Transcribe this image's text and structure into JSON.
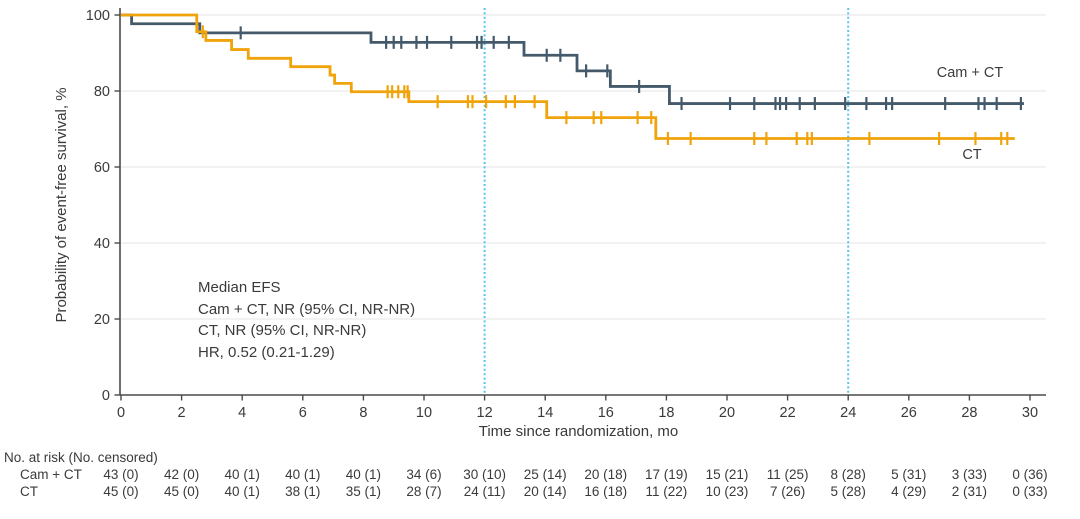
{
  "chart_data": {
    "type": "line",
    "subtype": "kaplan-meier-step",
    "title": "",
    "xlabel": "Time since randomization, mo",
    "ylabel": "Probability of event-free survival, %",
    "xlim": [
      0,
      30
    ],
    "ylim": [
      0,
      100
    ],
    "x_ticks": [
      0,
      2,
      4,
      6,
      8,
      10,
      12,
      14,
      16,
      18,
      20,
      22,
      24,
      26,
      28,
      30
    ],
    "y_ticks": [
      0,
      20,
      40,
      60,
      80,
      100
    ],
    "grid": "horizontal",
    "gridline_color": "#ebebeb",
    "axis_color": "#4a4a4a",
    "text_color": "#3a3a3a",
    "reference_lines_x": [
      12,
      24
    ],
    "reference_line_color": "#55C3EE",
    "legend_position": "curve-labels-right",
    "series": [
      {
        "name": "Cam + CT",
        "color": "#445A6B",
        "steps": [
          [
            0,
            100
          ],
          [
            0.35,
            97.7
          ],
          [
            2.6,
            95.3
          ],
          [
            8.25,
            92.8
          ],
          [
            13.3,
            89.4
          ],
          [
            15.05,
            85.3
          ],
          [
            16.15,
            81.2
          ],
          [
            18.1,
            76.7
          ],
          [
            29.8,
            76.7
          ]
        ],
        "censor_marks": [
          3.95,
          8.75,
          9.0,
          9.25,
          9.75,
          10.1,
          10.9,
          11.75,
          11.9,
          12.3,
          12.8,
          14.05,
          14.5,
          15.35,
          16.05,
          17.1,
          18.5,
          20.1,
          20.9,
          21.6,
          21.75,
          21.95,
          22.4,
          22.9,
          23.9,
          24.6,
          25.25,
          25.45,
          27.2,
          28.3,
          28.5,
          28.9,
          29.7
        ]
      },
      {
        "name": "CT",
        "color": "#F0A30A",
        "steps": [
          [
            0,
            100
          ],
          [
            2.5,
            95.6
          ],
          [
            2.8,
            93.3
          ],
          [
            3.65,
            90.9
          ],
          [
            4.2,
            88.6
          ],
          [
            5.6,
            86.4
          ],
          [
            6.9,
            84.2
          ],
          [
            7.05,
            82.0
          ],
          [
            7.6,
            79.8
          ],
          [
            9.5,
            77.2
          ],
          [
            14.05,
            73.0
          ],
          [
            17.65,
            67.5
          ],
          [
            29.5,
            67.5
          ]
        ],
        "censor_marks": [
          2.7,
          8.8,
          8.95,
          9.15,
          9.35,
          9.46,
          10.45,
          11.45,
          11.6,
          12.05,
          12.7,
          13.0,
          13.65,
          14.7,
          15.6,
          15.85,
          17.05,
          17.5,
          18.05,
          18.8,
          20.9,
          21.3,
          22.3,
          22.65,
          22.8,
          24.7,
          27.0,
          28.2,
          29.05,
          29.25
        ]
      }
    ],
    "annotation": {
      "lines": [
        "Median EFS",
        "Cam + CT, NR (95% CI, NR-NR)",
        "CT, NR (95% CI, NR-NR)",
        "HR, 0.52 (0.21-1.29)"
      ]
    },
    "risk_table": {
      "header": "No. at risk (No. censored)",
      "time_points": [
        0,
        2,
        4,
        6,
        8,
        10,
        12,
        14,
        16,
        18,
        20,
        22,
        24,
        26,
        28,
        30
      ],
      "rows": [
        {
          "label": "Cam + CT",
          "values": [
            "43 (0)",
            "42 (0)",
            "40 (1)",
            "40 (1)",
            "40 (1)",
            "34 (6)",
            "30 (10)",
            "25 (14)",
            "20 (18)",
            "17 (19)",
            "15 (21)",
            "11 (25)",
            "8 (28)",
            "5 (31)",
            "3 (33)",
            "0 (36)"
          ]
        },
        {
          "label": "CT",
          "values": [
            "45 (0)",
            "45 (0)",
            "40 (1)",
            "38 (1)",
            "35 (1)",
            "28 (7)",
            "24 (11)",
            "20 (14)",
            "16 (18)",
            "11 (22)",
            "10 (23)",
            "7 (26)",
            "5 (28)",
            "4 (29)",
            "2 (31)",
            "0 (33)"
          ]
        }
      ]
    }
  }
}
